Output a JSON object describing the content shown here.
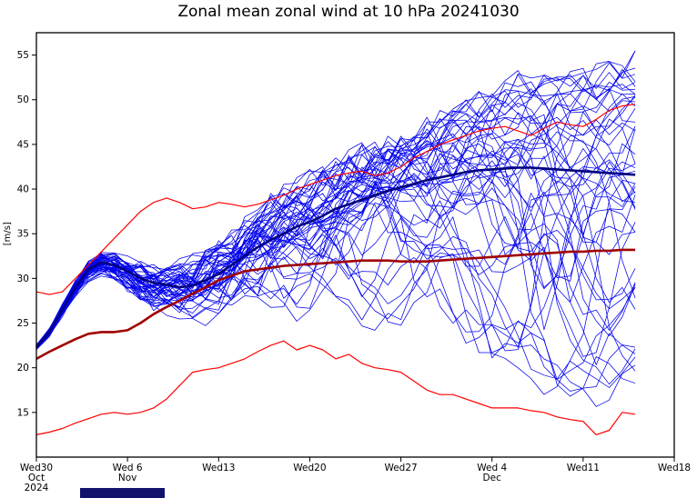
{
  "title": "Zonal mean zonal wind at 10 hPa 20241030",
  "chart_data": {
    "type": "line",
    "title": "Zonal mean zonal wind at 10 hPa 20241030",
    "xlabel": "",
    "ylabel": "[m/s]",
    "x_unit": "days since Wed 30 Oct 2024",
    "xlim": [
      0,
      49
    ],
    "ylim": [
      10,
      57.5
    ],
    "grid": false,
    "legend": "none",
    "y_ticks": [
      15,
      20,
      25,
      30,
      35,
      40,
      45,
      50,
      55
    ],
    "x_ticks": [
      {
        "day": 0,
        "lines": [
          "Wed30",
          "Oct",
          "2024"
        ]
      },
      {
        "day": 7,
        "lines": [
          "Wed 6",
          "Nov"
        ]
      },
      {
        "day": 14,
        "lines": [
          "Wed13"
        ]
      },
      {
        "day": 21,
        "lines": [
          "Wed20"
        ]
      },
      {
        "day": 28,
        "lines": [
          "Wed27"
        ]
      },
      {
        "day": 35,
        "lines": [
          "Wed 4",
          "Dec"
        ]
      },
      {
        "day": 42,
        "lines": [
          "Wed11"
        ]
      },
      {
        "day": 49,
        "lines": [
          "Wed18"
        ]
      }
    ],
    "series": [
      {
        "name": "ensemble-mean",
        "color": "#000080",
        "width": 2.6,
        "values": [
          22.3,
          24.0,
          26.5,
          29.0,
          31.0,
          31.8,
          31.5,
          30.8,
          30.0,
          29.5,
          29.3,
          29.0,
          29.2,
          29.8,
          30.5,
          31.5,
          32.5,
          33.5,
          34.3,
          35.0,
          35.8,
          36.3,
          37.0,
          37.8,
          38.3,
          38.8,
          39.3,
          39.8,
          40.2,
          40.6,
          41.0,
          41.3,
          41.6,
          41.9,
          42.1,
          42.2,
          42.3,
          42.4,
          42.4,
          42.3,
          42.2,
          42.1,
          42.0,
          41.9,
          41.8,
          41.7,
          41.6
        ]
      },
      {
        "name": "climatology",
        "color": "#a00000",
        "width": 2.6,
        "values": [
          21.0,
          21.8,
          22.5,
          23.2,
          23.8,
          24.0,
          24.0,
          24.2,
          25.0,
          26.0,
          26.8,
          27.5,
          28.3,
          29.0,
          29.8,
          30.3,
          30.8,
          31.0,
          31.2,
          31.4,
          31.5,
          31.6,
          31.7,
          31.8,
          31.9,
          32.0,
          32.0,
          32.0,
          31.9,
          31.9,
          31.9,
          32.0,
          32.1,
          32.2,
          32.3,
          32.4,
          32.5,
          32.6,
          32.7,
          32.8,
          32.9,
          33.0,
          33.0,
          33.1,
          33.1,
          33.2,
          33.2
        ]
      },
      {
        "name": "upper-bound",
        "color": "#ff0000",
        "width": 1.2,
        "values": [
          28.5,
          28.2,
          28.5,
          30.0,
          31.5,
          33.0,
          34.5,
          36.0,
          37.5,
          38.5,
          39.0,
          38.5,
          37.8,
          38.0,
          38.5,
          38.3,
          38.0,
          38.3,
          38.8,
          39.3,
          40.0,
          40.5,
          41.0,
          41.5,
          41.8,
          42.0,
          41.5,
          41.8,
          42.5,
          43.5,
          44.2,
          45.0,
          45.5,
          46.0,
          46.5,
          46.8,
          47.0,
          46.5,
          46.0,
          46.8,
          47.5,
          47.2,
          47.0,
          47.8,
          48.8,
          49.3,
          49.5
        ]
      },
      {
        "name": "lower-bound",
        "color": "#ff0000",
        "width": 1.2,
        "values": [
          12.5,
          12.8,
          13.2,
          13.8,
          14.3,
          14.8,
          15.0,
          14.8,
          15.0,
          15.5,
          16.5,
          18.0,
          19.5,
          19.8,
          20.0,
          20.5,
          21.0,
          21.8,
          22.5,
          23.0,
          22.0,
          22.5,
          22.0,
          21.0,
          21.5,
          20.5,
          20.0,
          19.8,
          19.5,
          18.5,
          17.5,
          17.0,
          17.0,
          16.5,
          16.0,
          15.5,
          15.5,
          15.5,
          15.2,
          15.0,
          14.5,
          14.2,
          14.0,
          12.5,
          13.0,
          15.0,
          14.8
        ]
      }
    ],
    "ensemble": {
      "name": "ensemble-members",
      "color": "#0000ee",
      "width": 0.75,
      "count": 51,
      "seed": 7,
      "spread_up": [
        0.3,
        0.4,
        0.5,
        0.6,
        0.7,
        0.8,
        0.9,
        1.1,
        1.3,
        1.6,
        1.9,
        2.2,
        2.6,
        3.0,
        3.4,
        3.8,
        4.1,
        4.4,
        4.6,
        4.8,
        5.0,
        5.0,
        5.2,
        5.4,
        5.6,
        5.8,
        6.0,
        6.3,
        6.6,
        7.0,
        7.4,
        7.8,
        8.2,
        8.6,
        9.0,
        9.4,
        9.8,
        10.2,
        10.6,
        11.0,
        11.4,
        11.8,
        12.2,
        12.6,
        13.2,
        13.8,
        14.2
      ],
      "spread_down": [
        0.3,
        0.5,
        0.7,
        0.9,
        1.1,
        1.3,
        1.6,
        2.0,
        2.4,
        2.8,
        3.2,
        3.6,
        4.2,
        4.8,
        5.5,
        6.3,
        7.2,
        8.2,
        9.2,
        10.2,
        11.2,
        12.2,
        13.2,
        14.2,
        15.2,
        16.2,
        17.2,
        18.2,
        19.2,
        20.2,
        21.2,
        22.2,
        23.2,
        24.2,
        25.2,
        26.0,
        26.5,
        27.0,
        27.3,
        27.5,
        27.7,
        27.8,
        28.0,
        28.0,
        27.5,
        27.0,
        26.5
      ]
    }
  },
  "footer": {
    "bar_color": "#12126e"
  }
}
